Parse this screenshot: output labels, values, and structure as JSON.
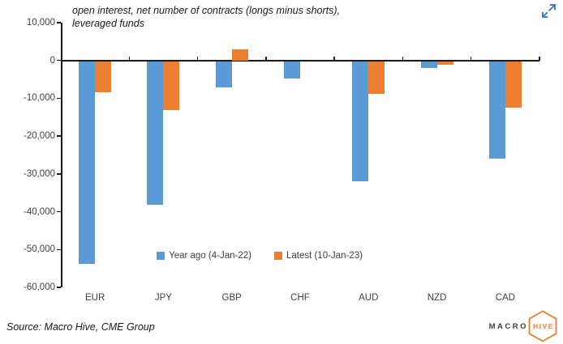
{
  "chart_data": {
    "type": "bar",
    "title": "open interest, net number of contracts (longs minus shorts), leveraged funds",
    "title_lines": [
      "open interest, net number of contracts (longs minus shorts),",
      "leveraged funds"
    ],
    "categories": [
      "EUR",
      "JPY",
      "GBP",
      "CHF",
      "AUD",
      "NZD",
      "CAD"
    ],
    "series": [
      {
        "name": "Year ago (4-Jan-22)",
        "color": "#5B9BD5",
        "values": [
          -53500,
          -38000,
          -7000,
          -4500,
          -31800,
          -1800,
          -25700
        ]
      },
      {
        "name": "Latest (10-Jan-23)",
        "color": "#ED7D31",
        "values": [
          -8300,
          -13000,
          3000,
          0,
          -8700,
          -1000,
          -12200
        ]
      }
    ],
    "ylim": [
      -60000,
      10000
    ],
    "ytick_step": 10000,
    "ytick_labels": [
      "10,000",
      "0",
      "-10,000",
      "-20,000",
      "-30,000",
      "-40,000",
      "-50,000",
      "-60,000"
    ],
    "grid": false,
    "legend_position": "bottom-center"
  },
  "icons": {
    "expand": "diagonal-expand-arrows",
    "expand_color": "#2E7AC7",
    "logo_hexagon": "hexagon-outline"
  },
  "footer": {
    "source": "Source: Macro Hive, CME Group"
  },
  "logo": {
    "macro": "MACRO",
    "hive": "HIVE",
    "accent": "#ED7D31",
    "text_color": "#3F3F3F"
  }
}
